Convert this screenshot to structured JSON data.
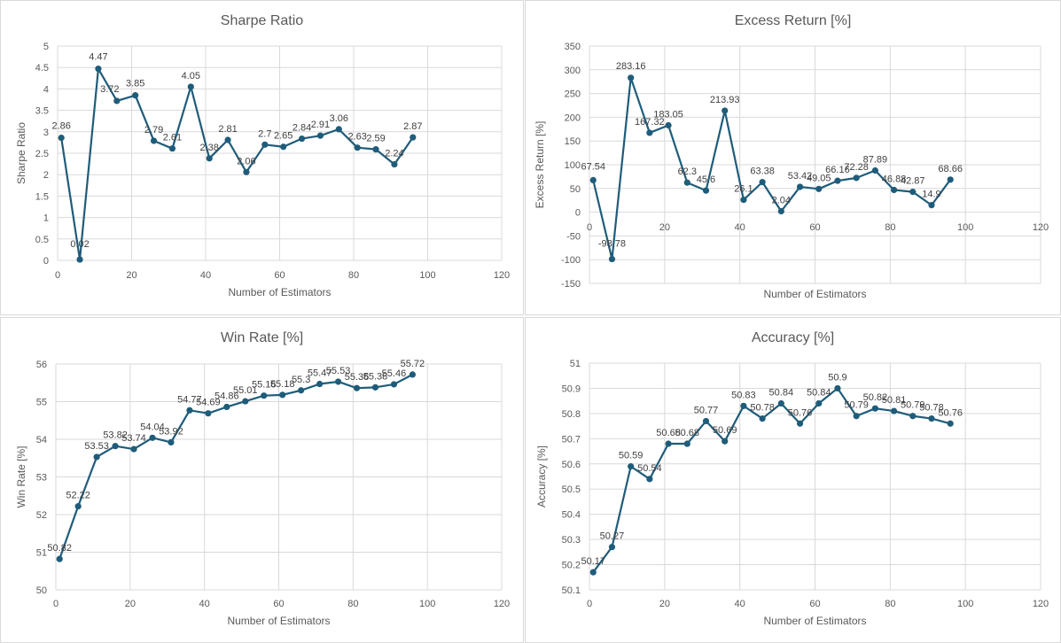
{
  "chart_data": [
    {
      "type": "line",
      "title": "Sharpe Ratio",
      "xlabel": "Number of Estimators",
      "ylabel": "Sharpe Ratio",
      "xlim": [
        0,
        120
      ],
      "ylim": [
        0,
        5
      ],
      "xticks": [
        "0",
        "20",
        "40",
        "60",
        "80",
        "100",
        "120"
      ],
      "yticks": [
        "0",
        "0.5",
        "1",
        "1.5",
        "2",
        "2.5",
        "3",
        "3.5",
        "4",
        "4.5",
        "5"
      ],
      "grid": true,
      "color": "#1f5c7a",
      "x": [
        1,
        6,
        11,
        16,
        21,
        26,
        31,
        36,
        41,
        46,
        51,
        56,
        61,
        66,
        71,
        76,
        81,
        86,
        91,
        96
      ],
      "y": [
        2.86,
        0.02,
        4.47,
        3.72,
        3.85,
        2.79,
        2.61,
        4.05,
        2.38,
        2.81,
        2.06,
        2.7,
        2.65,
        2.84,
        2.91,
        3.06,
        2.63,
        2.59,
        2.24,
        2.87
      ],
      "labels": [
        "2.86",
        "0.02",
        "4.47",
        "3.72",
        "3.85",
        "2.79",
        "2.61",
        "4.05",
        "2.38",
        "2.81",
        "2.06",
        "2.7",
        "2.65",
        "2.84",
        "2.91",
        "3.06",
        "2.63",
        "2.59",
        "2.24",
        "2.87"
      ]
    },
    {
      "type": "line",
      "title": "Excess Return [%]",
      "xlabel": "Number of Estimators",
      "ylabel": "Excess Return [%]",
      "xlim": [
        0,
        120
      ],
      "ylim": [
        -150,
        350
      ],
      "xticks": [
        "0",
        "20",
        "40",
        "60",
        "80",
        "100",
        "120"
      ],
      "yticks": [
        "-150",
        "-100",
        "-50",
        "0",
        "50",
        "100",
        "150",
        "200",
        "250",
        "300",
        "350"
      ],
      "grid": true,
      "color": "#1f5c7a",
      "x": [
        1,
        6,
        11,
        16,
        21,
        26,
        31,
        36,
        41,
        46,
        51,
        56,
        61,
        66,
        71,
        76,
        81,
        86,
        91,
        96
      ],
      "y": [
        67.54,
        -98.78,
        283.16,
        167.32,
        183.05,
        62.3,
        45.6,
        213.93,
        26.1,
        63.38,
        2.04,
        53.42,
        49.05,
        66.16,
        72.28,
        87.89,
        46.88,
        42.87,
        14.9,
        68.66
      ],
      "labels": [
        "67.54",
        "-98.78",
        "283.16",
        "167.32",
        "183.05",
        "62.3",
        "45.6",
        "213.93",
        "26.1",
        "63.38",
        "2.04",
        "53.42",
        "49.05",
        "66.16",
        "72.28",
        "87.89",
        "46.88",
        "42.87",
        "14.9",
        "68.66"
      ]
    },
    {
      "type": "line",
      "title": "Win Rate [%]",
      "xlabel": "Number of Estimators",
      "ylabel": "Win Rate [%]",
      "xlim": [
        0,
        120
      ],
      "ylim": [
        50,
        56
      ],
      "xticks": [
        "0",
        "20",
        "40",
        "60",
        "80",
        "100",
        "120"
      ],
      "yticks": [
        "50",
        "51",
        "52",
        "53",
        "54",
        "55",
        "56"
      ],
      "grid": true,
      "color": "#1f5c7a",
      "x": [
        1,
        6,
        11,
        16,
        21,
        26,
        31,
        36,
        41,
        46,
        51,
        56,
        61,
        66,
        71,
        76,
        81,
        86,
        91,
        96
      ],
      "y": [
        50.82,
        52.22,
        53.53,
        53.82,
        53.74,
        54.04,
        53.92,
        54.77,
        54.69,
        54.86,
        55.01,
        55.16,
        55.18,
        55.3,
        55.47,
        55.53,
        55.36,
        55.38,
        55.46,
        55.72
      ],
      "labels": [
        "50.82",
        "52.22",
        "53.53",
        "53.82",
        "53.74",
        "54.04",
        "53.92",
        "54.77",
        "54.69",
        "54.86",
        "55.01",
        "55.16",
        "55.18",
        "55.3",
        "55.47",
        "55.53",
        "55.36",
        "55.38",
        "55.46",
        "55.72"
      ]
    },
    {
      "type": "line",
      "title": "Accuracy [%]",
      "xlabel": "Number of Estimators",
      "ylabel": "Accuracy [%]",
      "xlim": [
        0,
        120
      ],
      "ylim": [
        50.1,
        51
      ],
      "xticks": [
        "0",
        "20",
        "40",
        "60",
        "80",
        "100",
        "120"
      ],
      "yticks": [
        "50.1",
        "50.2",
        "50.3",
        "50.4",
        "50.5",
        "50.6",
        "50.7",
        "50.8",
        "50.9",
        "51"
      ],
      "grid": true,
      "color": "#1f5c7a",
      "x": [
        1,
        6,
        11,
        16,
        21,
        26,
        31,
        36,
        41,
        46,
        51,
        56,
        61,
        66,
        71,
        76,
        81,
        86,
        91,
        96
      ],
      "y": [
        50.17,
        50.27,
        50.59,
        50.54,
        50.68,
        50.68,
        50.77,
        50.69,
        50.83,
        50.78,
        50.84,
        50.76,
        50.84,
        50.9,
        50.79,
        50.82,
        50.81,
        50.79,
        50.78,
        50.76
      ],
      "labels": [
        "50.17",
        "50.27",
        "50.59",
        "50.54",
        "50.68",
        "50.68",
        "50.77",
        "50.69",
        "50.83",
        "50.78",
        "50.84",
        "50.76",
        "50.84",
        "50.9",
        "50.79",
        "50.82",
        "50.81",
        "50.79",
        "50.78",
        "50.76"
      ]
    }
  ]
}
